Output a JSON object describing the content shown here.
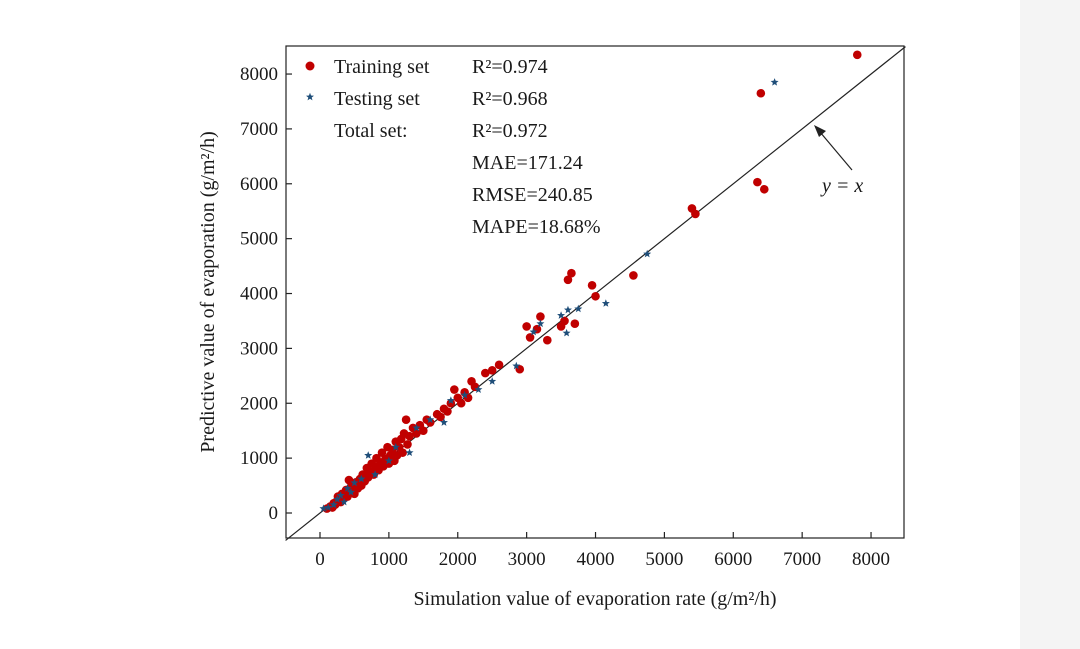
{
  "chart_data": {
    "type": "scatter",
    "xlabel": "Simulation value of evaporation rate (g/m²/h)",
    "ylabel": "Predictive value of evaporation (g/m²/h)",
    "xlim": [
      -500,
      8500
    ],
    "ylim": [
      -500,
      8500
    ],
    "x_ticks": [
      0,
      1000,
      2000,
      3000,
      4000,
      5000,
      6000,
      7000,
      8000
    ],
    "y_ticks": [
      0,
      1000,
      2000,
      3000,
      4000,
      5000,
      6000,
      7000,
      8000
    ],
    "grid": false,
    "legend_position": "top-left",
    "colors": {
      "training": "#c00000",
      "testing": "#1f4e79",
      "line": "#333333"
    },
    "series": [
      {
        "name": "Training set",
        "marker": "circle",
        "r2": "R²=0.974",
        "points": [
          [
            100,
            80
          ],
          [
            150,
            120
          ],
          [
            180,
            100
          ],
          [
            200,
            180
          ],
          [
            220,
            150
          ],
          [
            250,
            220
          ],
          [
            260,
            300
          ],
          [
            280,
            260
          ],
          [
            300,
            200
          ],
          [
            320,
            350
          ],
          [
            350,
            280
          ],
          [
            380,
            420
          ],
          [
            400,
            300
          ],
          [
            420,
            600
          ],
          [
            450,
            480
          ],
          [
            480,
            400
          ],
          [
            500,
            350
          ],
          [
            520,
            560
          ],
          [
            550,
            450
          ],
          [
            580,
            620
          ],
          [
            600,
            500
          ],
          [
            620,
            700
          ],
          [
            650,
            580
          ],
          [
            680,
            820
          ],
          [
            700,
            650
          ],
          [
            720,
            750
          ],
          [
            750,
            900
          ],
          [
            780,
            700
          ],
          [
            800,
            850
          ],
          [
            820,
            1000
          ],
          [
            850,
            780
          ],
          [
            880,
            920
          ],
          [
            900,
            1100
          ],
          [
            920,
            850
          ],
          [
            950,
            980
          ],
          [
            980,
            1200
          ],
          [
            1000,
            900
          ],
          [
            1020,
            1050
          ],
          [
            1050,
            1150
          ],
          [
            1080,
            950
          ],
          [
            1100,
            1300
          ],
          [
            1120,
            1050
          ],
          [
            1150,
            1200
          ],
          [
            1180,
            1350
          ],
          [
            1200,
            1100
          ],
          [
            1220,
            1450
          ],
          [
            1250,
            1700
          ],
          [
            1270,
            1250
          ],
          [
            1300,
            1400
          ],
          [
            1350,
            1550
          ],
          [
            1400,
            1450
          ],
          [
            1450,
            1600
          ],
          [
            1500,
            1500
          ],
          [
            1550,
            1700
          ],
          [
            1600,
            1650
          ],
          [
            1700,
            1800
          ],
          [
            1750,
            1750
          ],
          [
            1800,
            1900
          ],
          [
            1850,
            1850
          ],
          [
            1900,
            2000
          ],
          [
            1950,
            2250
          ],
          [
            2000,
            2100
          ],
          [
            2050,
            2000
          ],
          [
            2100,
            2200
          ],
          [
            2150,
            2100
          ],
          [
            2200,
            2400
          ],
          [
            2250,
            2300
          ],
          [
            2400,
            2550
          ],
          [
            2500,
            2600
          ],
          [
            2600,
            2700
          ],
          [
            2900,
            2620
          ],
          [
            3000,
            3400
          ],
          [
            3050,
            3200
          ],
          [
            3150,
            3350
          ],
          [
            3200,
            3580
          ],
          [
            3300,
            3150
          ],
          [
            3500,
            3400
          ],
          [
            3550,
            3500
          ],
          [
            3600,
            4250
          ],
          [
            3650,
            4370
          ],
          [
            3700,
            3450
          ],
          [
            3950,
            4150
          ],
          [
            4000,
            3950
          ],
          [
            4550,
            4330
          ],
          [
            5400,
            5550
          ],
          [
            5450,
            5450
          ],
          [
            6350,
            6030
          ],
          [
            6400,
            7650
          ],
          [
            6450,
            5900
          ],
          [
            7800,
            8350
          ]
        ]
      },
      {
        "name": "Testing set",
        "marker": "star",
        "r2": "R²=0.968",
        "points": [
          [
            50,
            80
          ],
          [
            120,
            100
          ],
          [
            200,
            150
          ],
          [
            250,
            250
          ],
          [
            300,
            320
          ],
          [
            350,
            200
          ],
          [
            400,
            450
          ],
          [
            450,
            380
          ],
          [
            500,
            550
          ],
          [
            600,
            620
          ],
          [
            700,
            1050
          ],
          [
            800,
            700
          ],
          [
            1000,
            950
          ],
          [
            1100,
            1200
          ],
          [
            1300,
            1100
          ],
          [
            1400,
            1550
          ],
          [
            1600,
            1700
          ],
          [
            1800,
            1650
          ],
          [
            1900,
            2050
          ],
          [
            2100,
            2150
          ],
          [
            2300,
            2250
          ],
          [
            2500,
            2400
          ],
          [
            2850,
            2680
          ],
          [
            3100,
            3300
          ],
          [
            3200,
            3450
          ],
          [
            3500,
            3600
          ],
          [
            3580,
            3280
          ],
          [
            3600,
            3700
          ],
          [
            3750,
            3720
          ],
          [
            4150,
            3820
          ],
          [
            4750,
            4720
          ],
          [
            6600,
            7850
          ]
        ]
      }
    ],
    "total_label": "Total set:",
    "total_r2": "R²=0.972",
    "mae": "MAE=171.24",
    "rmse": "RMSE=240.85",
    "mape": "MAPE=18.68%",
    "annotation": "y = x"
  }
}
